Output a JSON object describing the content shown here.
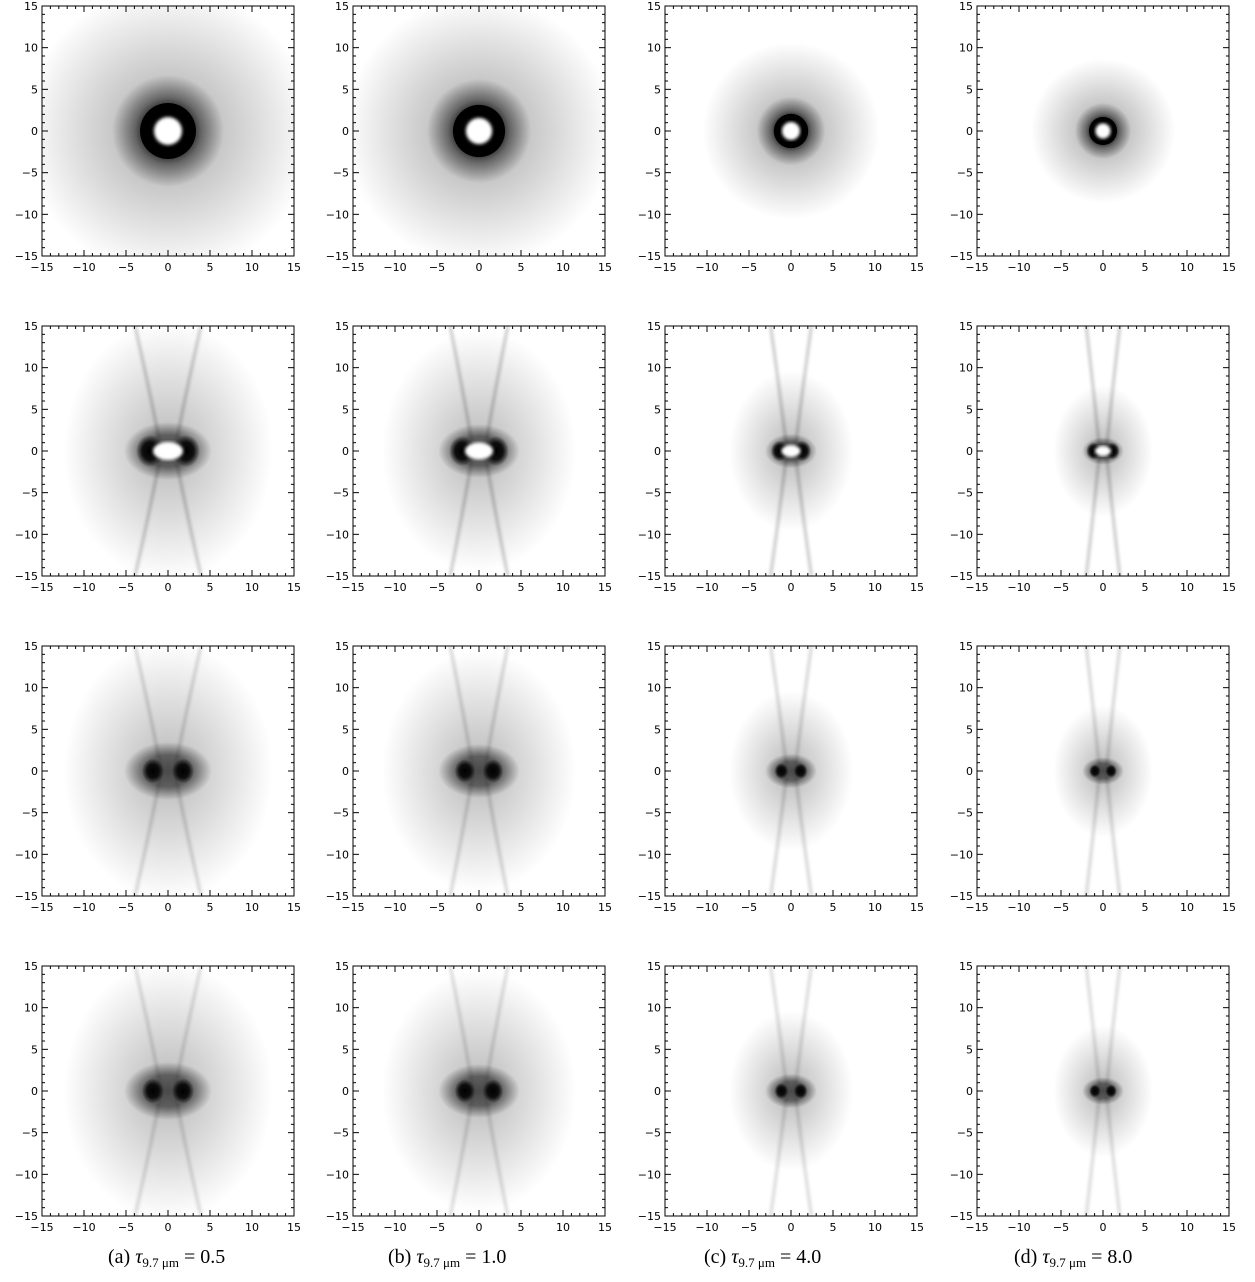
{
  "figure": {
    "axis": {
      "xlim": [
        -15,
        15
      ],
      "ylim": [
        -15,
        15
      ],
      "major_ticks": [
        -15,
        -10,
        -5,
        0,
        5,
        10,
        15
      ],
      "tick_labels": [
        "−15",
        "−10",
        "−5",
        "0",
        "5",
        "10",
        "15"
      ]
    },
    "colormap": "grayscale",
    "panel_grid": {
      "rows": 4,
      "columns": 4
    },
    "captions": [
      {
        "label": "(a)",
        "symbol": "τ",
        "subscript": "9.7 μm",
        "value": "= 0.5"
      },
      {
        "label": "(b)",
        "symbol": "τ",
        "subscript": "9.7 μm",
        "value": "= 1.0"
      },
      {
        "label": "(c)",
        "symbol": "τ",
        "subscript": "9.7 μm",
        "value": "= 4.0"
      },
      {
        "label": "(d)",
        "symbol": "τ",
        "subscript": "9.7 μm",
        "value": "= 8.0"
      }
    ],
    "tau_values": [
      0.5,
      1.0,
      4.0,
      8.0
    ]
  }
}
